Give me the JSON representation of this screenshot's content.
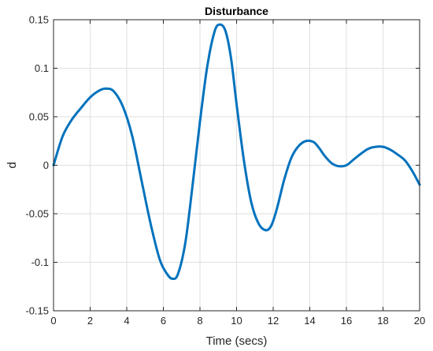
{
  "chart_data": {
    "type": "line",
    "title": "Disturbance",
    "xlabel": "Time (secs)",
    "ylabel": "d",
    "xlim": [
      0,
      20
    ],
    "ylim": [
      -0.15,
      0.15
    ],
    "xticks": [
      0,
      2,
      4,
      6,
      8,
      10,
      12,
      14,
      16,
      18,
      20
    ],
    "xtick_labels": [
      "0",
      "2",
      "4",
      "6",
      "8",
      "10",
      "12",
      "14",
      "16",
      "18",
      "20"
    ],
    "yticks": [
      0.15,
      0.1,
      0.05,
      0,
      -0.05,
      -0.1,
      -0.15
    ],
    "ytick_labels": [
      "0.15",
      "0.1",
      "0.05",
      "0",
      "-0.05",
      "-0.1",
      "-0.15"
    ],
    "grid": true,
    "series": [
      {
        "color": "#0072BD",
        "x": [
          0,
          0.5,
          1.0,
          1.5,
          2.0,
          2.5,
          2.9,
          3.3,
          3.8,
          4.3,
          4.8,
          5.3,
          5.8,
          6.2,
          6.5,
          6.8,
          7.2,
          7.6,
          8.0,
          8.4,
          8.8,
          9.1,
          9.4,
          9.7,
          10.0,
          10.4,
          10.8,
          11.2,
          11.6,
          11.9,
          12.2,
          12.6,
          13.0,
          13.4,
          13.8,
          14.2,
          14.5,
          14.8,
          15.2,
          15.6,
          16.0,
          16.4,
          16.8,
          17.2,
          17.6,
          18.0,
          18.4,
          18.8,
          19.2,
          19.6,
          20.0
        ],
        "y": [
          0.0,
          0.03,
          0.047,
          0.059,
          0.07,
          0.077,
          0.079,
          0.076,
          0.06,
          0.03,
          -0.015,
          -0.06,
          -0.097,
          -0.112,
          -0.117,
          -0.112,
          -0.08,
          -0.02,
          0.045,
          0.102,
          0.138,
          0.145,
          0.138,
          0.11,
          0.063,
          0.005,
          -0.038,
          -0.06,
          -0.067,
          -0.062,
          -0.045,
          -0.015,
          0.008,
          0.02,
          0.025,
          0.024,
          0.018,
          0.01,
          0.002,
          -0.001,
          0.0,
          0.006,
          0.012,
          0.017,
          0.019,
          0.019,
          0.016,
          0.011,
          0.005,
          -0.006,
          -0.02
        ]
      }
    ]
  }
}
